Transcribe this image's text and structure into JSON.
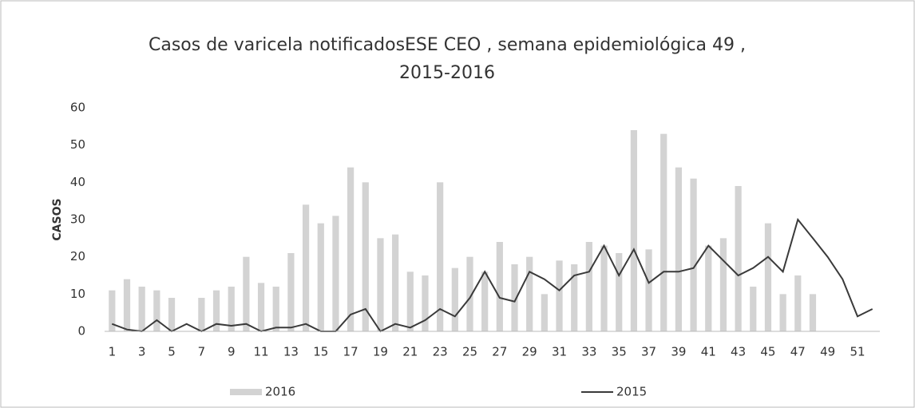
{
  "chart_data": {
    "type": "bar_line",
    "title": [
      "Casos de varicela notificadosESE CEO , semana epidemiológica 49 ,",
      "2015-2016"
    ],
    "ylabel": "CASOS",
    "categories": [
      1,
      null,
      3,
      null,
      5,
      null,
      7,
      null,
      9,
      null,
      11,
      null,
      13,
      null,
      15,
      null,
      17,
      null,
      19,
      null,
      21,
      null,
      23,
      null,
      25,
      null,
      27,
      null,
      29,
      null,
      31,
      null,
      33,
      null,
      35,
      null,
      37,
      null,
      39,
      null,
      41,
      null,
      43,
      null,
      45,
      null,
      47,
      null,
      49,
      null,
      51,
      null
    ],
    "series": [
      {
        "name": "2016",
        "type": "bar",
        "color": "#c4c4c4",
        "values": [
          11,
          14,
          12,
          11,
          9,
          0,
          9,
          11,
          12,
          20,
          13,
          12,
          21,
          34,
          29,
          31,
          44,
          40,
          25,
          26,
          16,
          15,
          40,
          17,
          20,
          16,
          24,
          18,
          20,
          10,
          19,
          18,
          24,
          23,
          21,
          54,
          22,
          53,
          44,
          41,
          23,
          25,
          39,
          12,
          29,
          10,
          15,
          10,
          null,
          null,
          null,
          null
        ]
      },
      {
        "name": "2015",
        "type": "line",
        "color": "#3a3a3a",
        "values": [
          2,
          0.5,
          0,
          3,
          0,
          2,
          0,
          2,
          1.5,
          2,
          0,
          1,
          1,
          2,
          0,
          0,
          4.5,
          6,
          0,
          2,
          1,
          3,
          6,
          4,
          9,
          16,
          9,
          8,
          16,
          14,
          11,
          15,
          16,
          23,
          15,
          22,
          13,
          16,
          16,
          17,
          23,
          19,
          15,
          17,
          20,
          16,
          30,
          25,
          20,
          14,
          4,
          6
        ]
      }
    ],
    "ylim": [
      0,
      60
    ],
    "yticks": [
      0,
      10,
      20,
      30,
      40,
      50,
      60
    ],
    "grid": false,
    "legend": "bottom"
  }
}
